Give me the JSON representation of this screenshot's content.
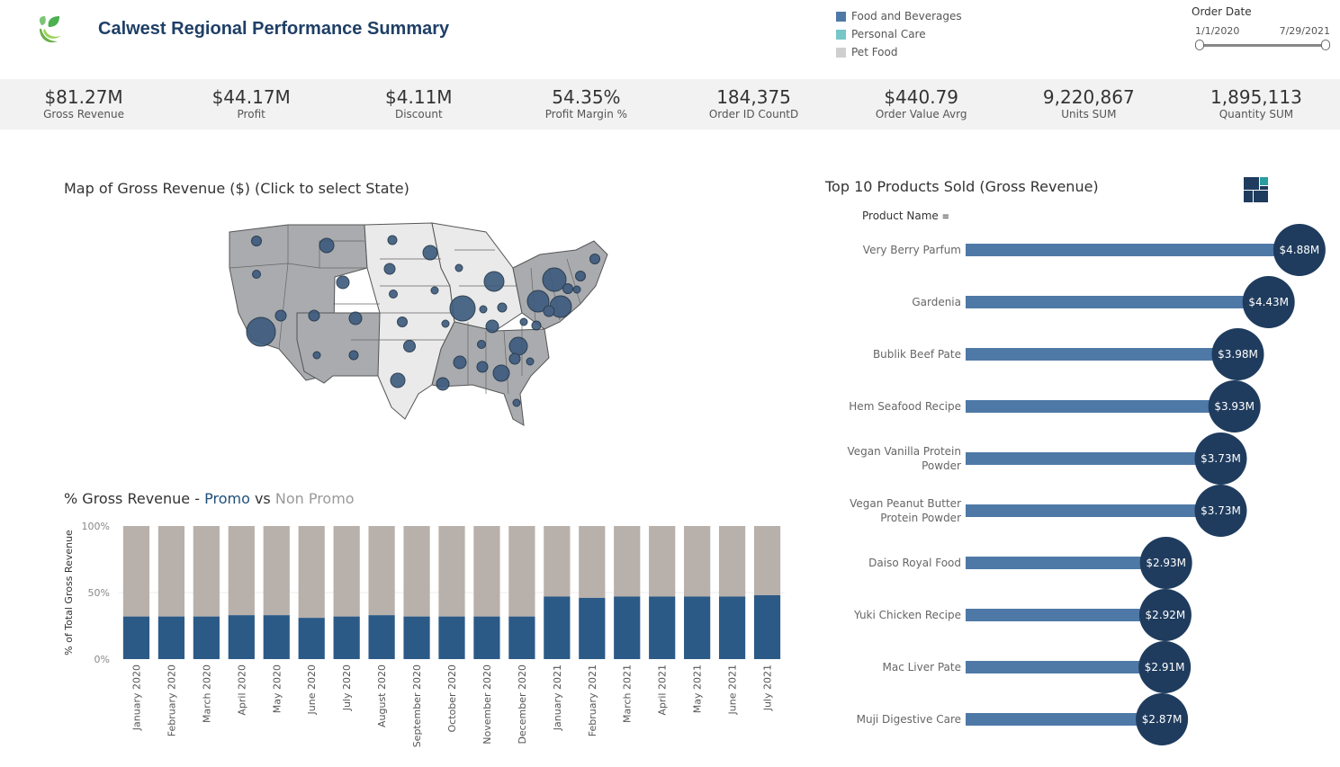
{
  "header": {
    "title": "Calwest Regional Performance Summary",
    "legend": [
      {
        "label": "Food and Beverages",
        "color": "#4e79a7"
      },
      {
        "label": "Personal Care",
        "color": "#76c7c8"
      },
      {
        "label": "Pet Food",
        "color": "#cfcfcf"
      }
    ],
    "date_filter": {
      "label": "Order Date",
      "start": "1/1/2020",
      "end": "7/29/2021"
    }
  },
  "kpis": [
    {
      "value": "$81.27M",
      "label": "Gross Revenue"
    },
    {
      "value": "$44.17M",
      "label": "Profit"
    },
    {
      "value": "$4.11M",
      "label": "Discount"
    },
    {
      "value": "54.35%",
      "label": "Profit Margin %"
    },
    {
      "value": "184,375",
      "label": "Order ID CountD"
    },
    {
      "value": "$440.79",
      "label": "Order Value Avrg"
    },
    {
      "value": "9,220,867",
      "label": "Units SUM"
    },
    {
      "value": "1,895,113",
      "label": "Quantity SUM"
    }
  ],
  "map": {
    "title": "Map of Gross Revenue ($) (Click to select State)"
  },
  "promo": {
    "title_prefix": "% Gross Revenue - ",
    "title_promo": "Promo",
    "title_vs": " vs ",
    "title_nonpromo": "Non Promo"
  },
  "top10": {
    "title": "Top 10 Products Sold (Gross Revenue)",
    "column_header": "Product Name"
  },
  "chart_data": [
    {
      "type": "bar",
      "stacked": true,
      "title": "% Gross Revenue - Promo vs Non Promo",
      "ylabel": "% of Total Gross Revenue",
      "ylim": [
        0,
        100
      ],
      "yticks": [
        "0%",
        "50%",
        "100%"
      ],
      "categories": [
        "January 2020",
        "February 2020",
        "March 2020",
        "April 2020",
        "May 2020",
        "June 2020",
        "July 2020",
        "August 2020",
        "September 2020",
        "October 2020",
        "November 2020",
        "December 2020",
        "January 2021",
        "February 2021",
        "March 2021",
        "April 2021",
        "May 2021",
        "June 2021",
        "July 2021"
      ],
      "series": [
        {
          "name": "Promo",
          "color": "#2b5a87",
          "values": [
            32,
            32,
            32,
            33,
            33,
            31,
            32,
            33,
            32,
            32,
            32,
            32,
            47,
            46,
            47,
            47,
            47,
            47,
            48
          ]
        },
        {
          "name": "Non Promo",
          "color": "#b8b0aa",
          "values": [
            68,
            68,
            68,
            67,
            67,
            69,
            68,
            67,
            68,
            68,
            68,
            68,
            53,
            54,
            53,
            53,
            53,
            53,
            52
          ]
        }
      ]
    },
    {
      "type": "bar",
      "orientation": "horizontal",
      "title": "Top 10 Products Sold (Gross Revenue)",
      "categories": [
        "Very Berry Parfum",
        "Gardenia",
        "Bublik Beef Pate",
        "Hem Seafood Recipe",
        "Vegan Vanilla Protein Powder",
        "Vegan Peanut Butter Protein Powder",
        "Daiso Royal Food",
        "Yuki Chicken Recipe",
        "Mac Liver Pate",
        "Muji Digestive Care"
      ],
      "category_lines": [
        [
          "Very Berry Parfum"
        ],
        [
          "Gardenia"
        ],
        [
          "Bublik Beef Pate"
        ],
        [
          "Hem Seafood Recipe"
        ],
        [
          "Vegan Vanilla Protein",
          "Powder"
        ],
        [
          "Vegan Peanut Butter",
          "Protein Powder"
        ],
        [
          "Daiso Royal Food"
        ],
        [
          "Yuki Chicken Recipe"
        ],
        [
          "Mac Liver Pate"
        ],
        [
          "Muji Digestive Care"
        ]
      ],
      "values": [
        4.88,
        4.43,
        3.98,
        3.93,
        3.73,
        3.73,
        2.93,
        2.92,
        2.91,
        2.87
      ],
      "labels": [
        "$4.88M",
        "$4.43M",
        "$3.98M",
        "$3.93M",
        "$3.73M",
        "$3.73M",
        "$2.93M",
        "$2.92M",
        "$2.91M",
        "$2.87M"
      ],
      "unit": "$M",
      "bar_color": "#4e79a7",
      "circle_color": "#1f3c5e"
    }
  ]
}
